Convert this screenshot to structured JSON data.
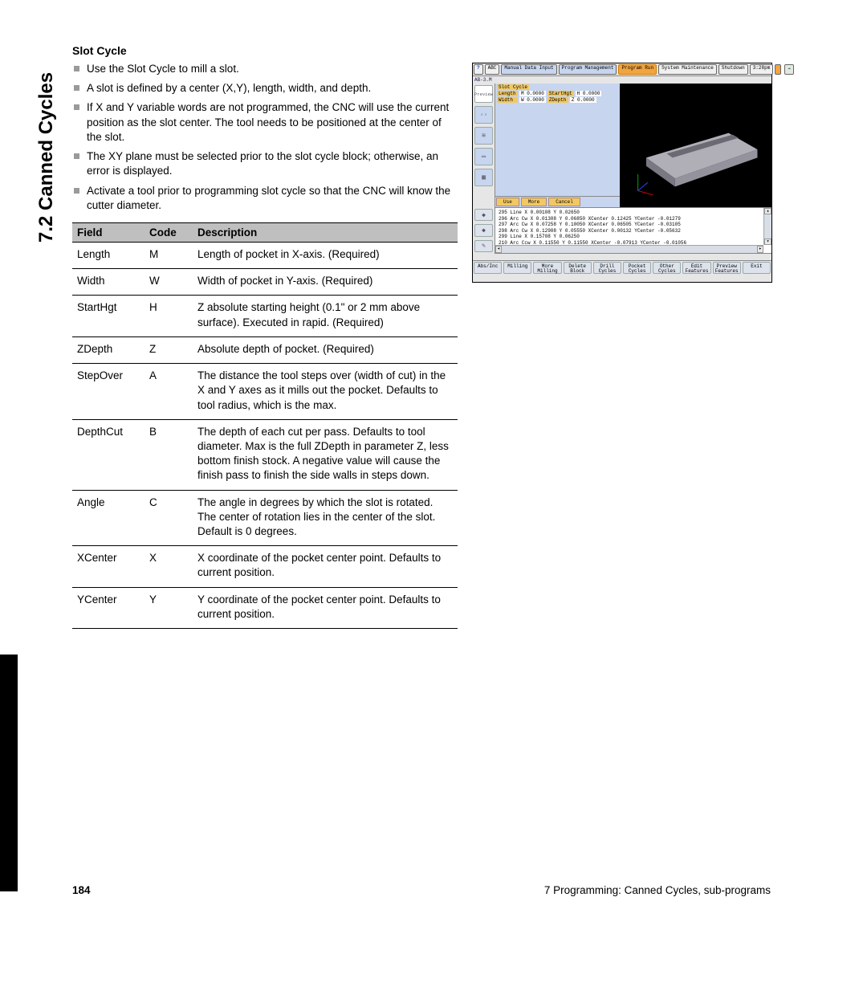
{
  "sidebar_title": "7.2 Canned Cycles",
  "section_title": "Slot Cycle",
  "bullets": [
    "Use the Slot Cycle to mill a slot.",
    "A slot is defined by a center (X,Y), length, width, and depth.",
    "If X and Y variable words are not programmed, the CNC will use the current position as the slot center. The tool needs to be positioned at the center of the slot.",
    "The XY plane must be selected prior to the slot cycle block; otherwise, an error is displayed.",
    "Activate a tool prior to programming slot cycle so that the CNC will know the cutter diameter."
  ],
  "table": {
    "headers": [
      "Field",
      "Code",
      "Description"
    ],
    "rows": [
      [
        "Length",
        "M",
        "Length of pocket in X-axis. (Required)"
      ],
      [
        "Width",
        "W",
        "Width of pocket in Y-axis. (Required)"
      ],
      [
        "StartHgt",
        "H",
        "Z absolute starting height (0.1\" or 2 mm above surface). Executed in rapid. (Required)"
      ],
      [
        "ZDepth",
        "Z",
        "Absolute depth of pocket. (Required)"
      ],
      [
        "StepOver",
        "A",
        "The distance the tool steps over (width of cut) in the X and Y axes as it mills out the pocket. Defaults to tool radius, which is the max."
      ],
      [
        "DepthCut",
        "B",
        "The depth of each cut per pass. Defaults to tool diameter. Max is the full ZDepth in parameter Z, less bottom finish stock. A negative value will cause the finish pass to finish the side walls in steps down."
      ],
      [
        "Angle",
        "C",
        "The angle in degrees by which the slot is rotated. The center of rotation lies in the center of the slot. Default is 0 degrees."
      ],
      [
        "XCenter",
        "X",
        "X coordinate of the pocket center point. Defaults to current position."
      ],
      [
        "YCenter",
        "Y",
        "Y coordinate of the pocket center point. Defaults to current position."
      ]
    ]
  },
  "cnc": {
    "colors": {
      "window_bg": "#e6e6e6",
      "panel_blue": "#c7d5ef",
      "accent_orange": "#f2c862",
      "accent_bright": "#f2a43f",
      "border": "#888888",
      "preview_bg": "#000000",
      "solid_body": "#b0aeb7",
      "solid_top": "#cfcdd6"
    },
    "top_buttons_left": [
      "?",
      "ABC"
    ],
    "top_buttons_mid": [
      "Manual Data Input",
      "Program Management",
      "Program Run",
      "System Maintenance",
      "Shutdown"
    ],
    "top_time": "3:28pm",
    "program_label": "AB-3.M",
    "preview_label": "Preview",
    "params_title": "Slot Cycle",
    "param_rows": [
      [
        {
          "l": "Length",
          "v": "M 0.0000"
        },
        {
          "l": "StartHgt",
          "v": "H 0.0000"
        }
      ],
      [
        {
          "l": "Width",
          "v": "W 0.0000"
        },
        {
          "l": "ZDepth",
          "v": "Z 0.0000"
        }
      ]
    ],
    "param_buttons": [
      "Use",
      "More",
      "Cancel"
    ],
    "code_lines": [
      "295 Line    X 0.00108 Y 0.02650",
      "296 Arc Cw  X 0.01308 Y 0.06850 XCenter 0.12425 YCenter -0.01279",
      "297 Arc Cw  X 0.07258 Y 0.10050 XCenter 0.06505 YCenter -0.03105",
      "298 Arc Cw  X 0.12908 Y 0.05550 XCenter 0.00132 YCenter -0.05632",
      "299 Line    X 0.15708 Y 0.06250",
      "210 Arc Ccw X 0.11550 Y 0.11550 XCenter -0.07913 YCenter -0.01056",
      "211 Arc Ccw X 0.06208 Y 0.12450 XCenter -0.04519 YCenter -0.10558"
    ],
    "left_tool_icons": [
      "◦◦",
      "≋",
      "▭",
      "▦",
      "◆",
      "◆",
      "✎"
    ],
    "bottom_buttons": [
      "Abs/Inc",
      "Milling",
      "More Milling",
      "Delete Block",
      "Drill Cycles",
      "Pocket Cycles",
      "Other Cycles",
      "Edit Features",
      "Preview Features",
      "Exit"
    ]
  },
  "footer": {
    "page": "184",
    "chapter": "7 Programming: Canned Cycles, sub-programs"
  }
}
